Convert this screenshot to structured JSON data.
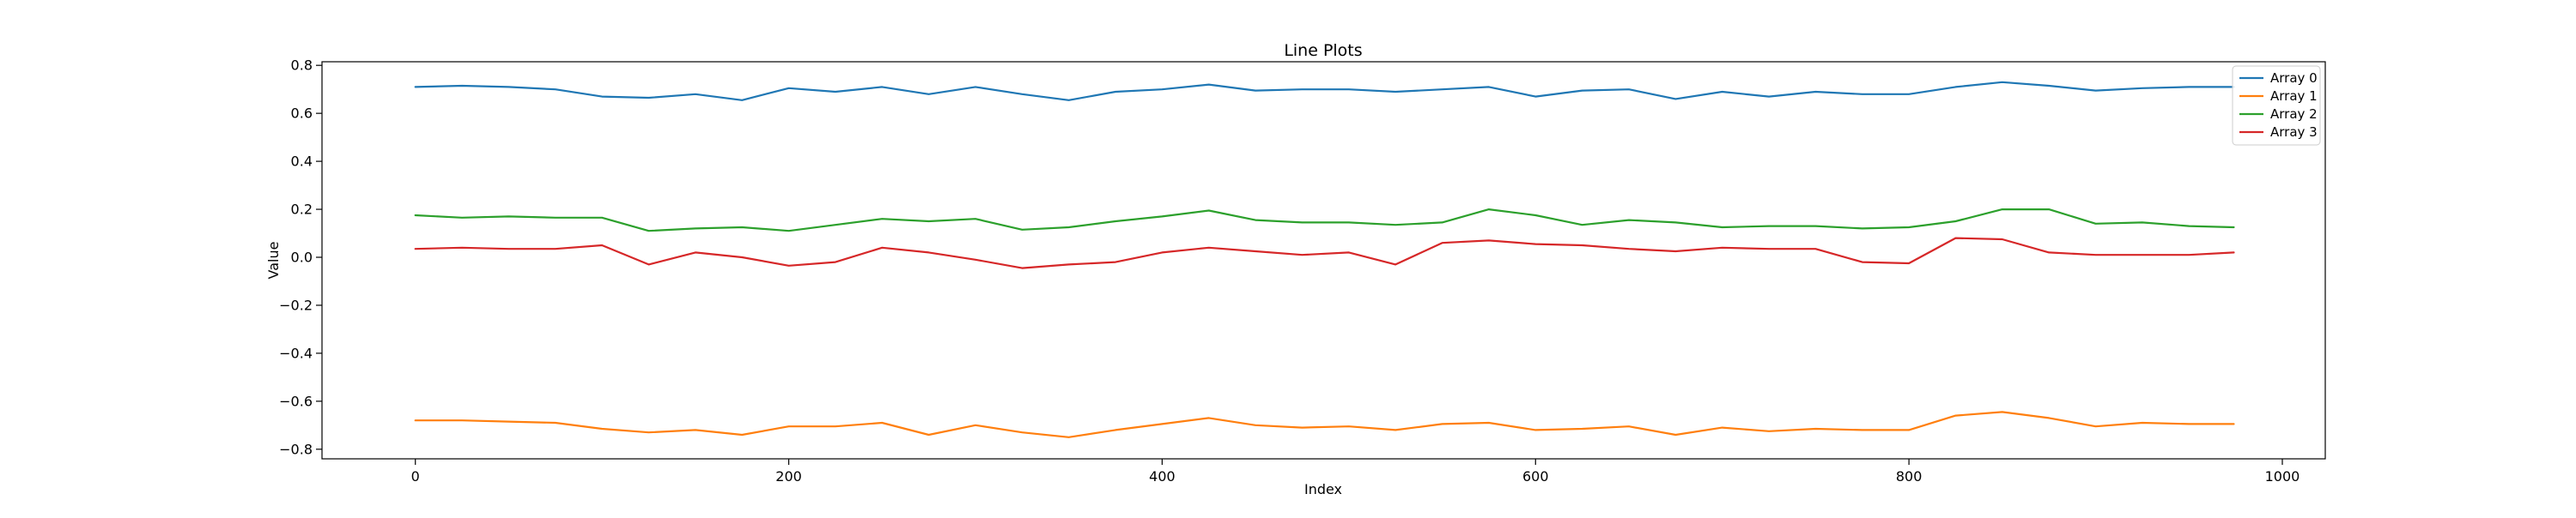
{
  "chart_data": {
    "type": "line",
    "title": "Line Plots",
    "xlabel": "Index",
    "ylabel": "Value",
    "xlim": [
      -50,
      1023
    ],
    "ylim": [
      -0.84,
      0.815
    ],
    "xticks": [
      0,
      200,
      400,
      600,
      800,
      1000
    ],
    "xtick_labels": [
      "0",
      "200",
      "400",
      "600",
      "800",
      "1000"
    ],
    "yticks": [
      -0.8,
      -0.6,
      -0.4,
      -0.2,
      0.0,
      0.2,
      0.4,
      0.6,
      0.8
    ],
    "ytick_labels": [
      "−0.8",
      "−0.6",
      "−0.4",
      "−0.2",
      "0.0",
      "0.2",
      "0.4",
      "0.6",
      "0.8"
    ],
    "grid": false,
    "legend_position": "top-right",
    "x": [
      0,
      25,
      50,
      75,
      100,
      125,
      150,
      175,
      200,
      225,
      250,
      275,
      300,
      325,
      350,
      375,
      400,
      425,
      450,
      475,
      500,
      525,
      550,
      575,
      600,
      625,
      650,
      675,
      700,
      725,
      750,
      775,
      800,
      825,
      850,
      875,
      900,
      925,
      950,
      974
    ],
    "series": [
      {
        "name": "Array 0",
        "color": "#1f77b4",
        "values": [
          0.71,
          0.715,
          0.71,
          0.7,
          0.67,
          0.665,
          0.68,
          0.655,
          0.705,
          0.69,
          0.71,
          0.68,
          0.71,
          0.68,
          0.655,
          0.69,
          0.7,
          0.72,
          0.695,
          0.7,
          0.7,
          0.69,
          0.7,
          0.71,
          0.67,
          0.695,
          0.7,
          0.66,
          0.69,
          0.67,
          0.69,
          0.68,
          0.68,
          0.71,
          0.73,
          0.715,
          0.695,
          0.705,
          0.71,
          0.71
        ]
      },
      {
        "name": "Array 1",
        "color": "#ff7f0e",
        "values": [
          -0.68,
          -0.68,
          -0.685,
          -0.69,
          -0.715,
          -0.73,
          -0.72,
          -0.74,
          -0.705,
          -0.705,
          -0.69,
          -0.74,
          -0.7,
          -0.73,
          -0.75,
          -0.72,
          -0.695,
          -0.67,
          -0.7,
          -0.71,
          -0.705,
          -0.72,
          -0.695,
          -0.69,
          -0.72,
          -0.715,
          -0.705,
          -0.74,
          -0.71,
          -0.725,
          -0.715,
          -0.72,
          -0.72,
          -0.66,
          -0.645,
          -0.67,
          -0.705,
          -0.69,
          -0.695,
          -0.695
        ]
      },
      {
        "name": "Array 2",
        "color": "#2ca02c",
        "values": [
          0.175,
          0.165,
          0.17,
          0.165,
          0.165,
          0.11,
          0.12,
          0.125,
          0.11,
          0.135,
          0.16,
          0.15,
          0.16,
          0.115,
          0.125,
          0.15,
          0.17,
          0.195,
          0.155,
          0.145,
          0.145,
          0.135,
          0.145,
          0.2,
          0.175,
          0.135,
          0.155,
          0.145,
          0.125,
          0.13,
          0.13,
          0.12,
          0.125,
          0.15,
          0.2,
          0.2,
          0.14,
          0.145,
          0.13,
          0.125
        ]
      },
      {
        "name": "Array 3",
        "color": "#d62728",
        "values": [
          0.035,
          0.04,
          0.035,
          0.035,
          0.05,
          -0.03,
          0.02,
          0.0,
          -0.035,
          -0.02,
          0.04,
          0.02,
          -0.01,
          -0.045,
          -0.03,
          -0.02,
          0.02,
          0.04,
          0.025,
          0.01,
          0.02,
          -0.03,
          0.06,
          0.07,
          0.055,
          0.05,
          0.035,
          0.025,
          0.04,
          0.035,
          0.035,
          -0.02,
          -0.025,
          0.08,
          0.075,
          0.02,
          0.01,
          0.01,
          0.01,
          0.02
        ]
      }
    ]
  }
}
